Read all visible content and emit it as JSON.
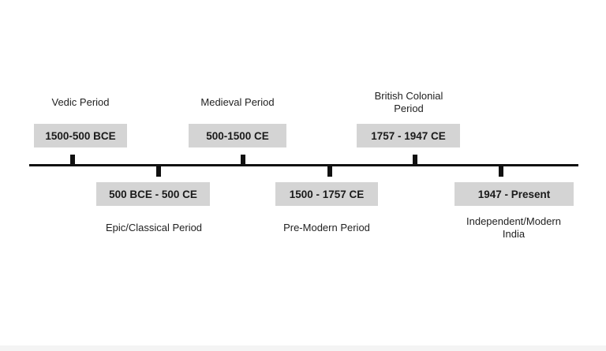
{
  "timeline": {
    "periods": [
      {
        "name": "Vedic Period",
        "range": "1500-500 BCE",
        "side": "top"
      },
      {
        "name": "Epic/Classical Period",
        "range": "500 BCE - 500 CE",
        "side": "bottom"
      },
      {
        "name": "Medieval Period",
        "range": "500-1500 CE",
        "side": "top"
      },
      {
        "name": "Pre-Modern Period",
        "range": "1500 - 1757 CE",
        "side": "bottom"
      },
      {
        "name": "British Colonial\nPeriod",
        "range": "1757 - 1947 CE",
        "side": "top"
      },
      {
        "name": "Independent/Modern\nIndia",
        "range": "1947 - Present",
        "side": "bottom"
      }
    ],
    "colors": {
      "box": "#d4d4d4",
      "line": "#111111"
    }
  }
}
